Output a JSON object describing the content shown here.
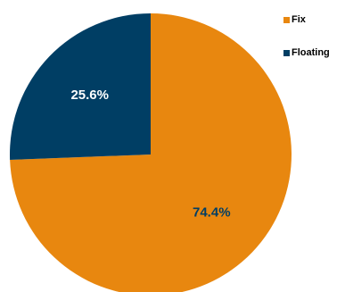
{
  "chart_data": {
    "type": "pie",
    "categories": [
      "Fix",
      "Floating"
    ],
    "values": [
      74.4,
      25.6
    ],
    "value_labels": [
      "74.4%",
      "25.6%"
    ],
    "colors": [
      "#E8870F",
      "#003E64"
    ],
    "label_colors": [
      "#003E64",
      "#ffffff"
    ],
    "start": "12 o'clock",
    "direction": "clockwise",
    "legend_position": "top-right"
  }
}
